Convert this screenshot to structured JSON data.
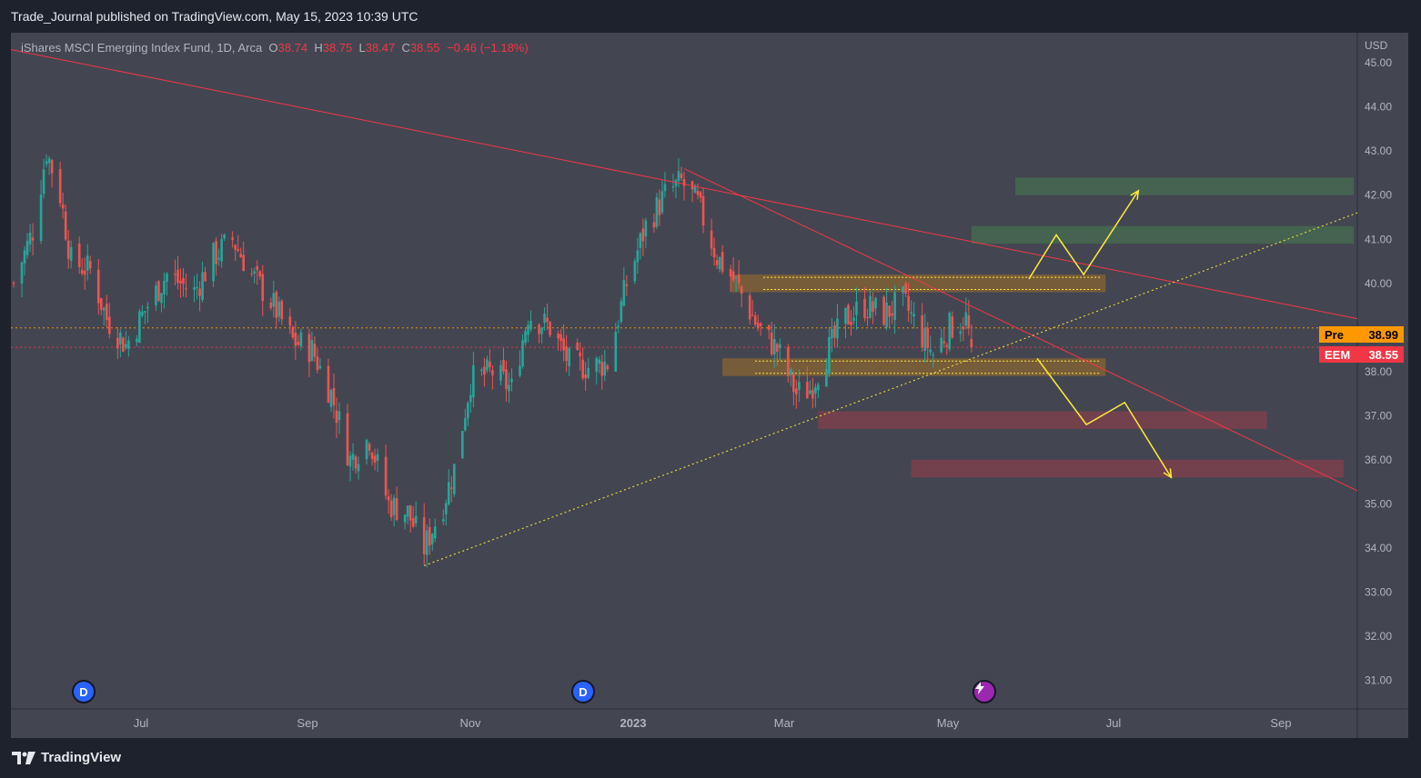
{
  "header": {
    "published_line": "Trade_Journal published on TradingView.com, May 15, 2023 10:39 UTC"
  },
  "symbol_legend": {
    "name": "iShares MSCI Emerging Index Fund, 1D, Arca",
    "open_label": "O",
    "open": "38.74",
    "high_label": "H",
    "high": "38.75",
    "low_label": "L",
    "low": "38.47",
    "close_label": "C",
    "close": "38.55",
    "change": "−0.46 (−1.18%)"
  },
  "price_axis": {
    "currency": "USD",
    "ticks": [
      "45.00",
      "44.00",
      "43.00",
      "42.00",
      "41.00",
      "40.00",
      "38.00",
      "37.00",
      "36.00",
      "35.00",
      "34.00",
      "33.00",
      "32.00",
      "31.00"
    ]
  },
  "time_axis": {
    "labels": [
      "Jul",
      "Sep",
      "Nov",
      "2023",
      "Mar",
      "May",
      "Jul",
      "Sep"
    ]
  },
  "price_badges": {
    "pre": {
      "label": "Pre",
      "value": "38.99",
      "color": "#ff9800"
    },
    "last": {
      "label": "EEM",
      "value": "38.55",
      "color": "#f23645"
    }
  },
  "events": [
    {
      "type": "dividend",
      "glyph": "D"
    },
    {
      "type": "dividend",
      "glyph": "D"
    },
    {
      "type": "earnings",
      "icon": "lightning-icon"
    }
  ],
  "footer": {
    "brand": "TradingView"
  },
  "colors": {
    "up": "#26a69a",
    "down": "#ef5350",
    "trendline": "#f23645",
    "support": "#ffeb3b"
  },
  "chart_data": {
    "type": "candlestick",
    "symbol": "EEM",
    "interval": "1D",
    "ylim": [
      30.6,
      45.6
    ],
    "x_range": [
      "2022-05-26",
      "2023-09-30"
    ],
    "close_path": [
      [
        "2022-05-27",
        40.0
      ],
      [
        "2022-06-03",
        41.2
      ],
      [
        "2022-06-08",
        43.0
      ],
      [
        "2022-06-13",
        42.0
      ],
      [
        "2022-06-17",
        40.5
      ],
      [
        "2022-06-24",
        40.3
      ],
      [
        "2022-06-30",
        39.2
      ],
      [
        "2022-07-07",
        38.6
      ],
      [
        "2022-07-15",
        39.5
      ],
      [
        "2022-07-22",
        40.2
      ],
      [
        "2022-08-01",
        39.8
      ],
      [
        "2022-08-08",
        40.6
      ],
      [
        "2022-08-15",
        41.0
      ],
      [
        "2022-08-22",
        40.2
      ],
      [
        "2022-08-29",
        39.6
      ],
      [
        "2022-09-06",
        38.7
      ],
      [
        "2022-09-13",
        38.5
      ],
      [
        "2022-09-20",
        37.5
      ],
      [
        "2022-09-27",
        36.0
      ],
      [
        "2022-10-04",
        36.5
      ],
      [
        "2022-10-11",
        35.0
      ],
      [
        "2022-10-18",
        34.8
      ],
      [
        "2022-10-24",
        34.0
      ],
      [
        "2022-10-31",
        35.0
      ],
      [
        "2022-11-04",
        35.8
      ],
      [
        "2022-11-10",
        37.8
      ],
      [
        "2022-11-18",
        38.0
      ],
      [
        "2022-11-25",
        37.6
      ],
      [
        "2022-12-01",
        39.3
      ],
      [
        "2022-12-09",
        39.0
      ],
      [
        "2022-12-16",
        38.2
      ],
      [
        "2022-12-23",
        38.1
      ],
      [
        "2022-12-30",
        38.2
      ],
      [
        "2023-01-06",
        40.0
      ],
      [
        "2023-01-13",
        41.3
      ],
      [
        "2023-01-20",
        42.0
      ],
      [
        "2023-01-26",
        42.3
      ],
      [
        "2023-02-01",
        41.8
      ],
      [
        "2023-02-08",
        40.6
      ],
      [
        "2023-02-15",
        40.0
      ],
      [
        "2023-02-23",
        39.0
      ],
      [
        "2023-03-02",
        38.5
      ],
      [
        "2023-03-09",
        37.5
      ],
      [
        "2023-03-14",
        37.6
      ],
      [
        "2023-03-20",
        38.4
      ],
      [
        "2023-03-27",
        39.2
      ],
      [
        "2023-04-03",
        39.5
      ],
      [
        "2023-04-10",
        39.3
      ],
      [
        "2023-04-17",
        39.6
      ],
      [
        "2023-04-24",
        38.8
      ],
      [
        "2023-04-28",
        38.4
      ],
      [
        "2023-05-04",
        39.0
      ],
      [
        "2023-05-10",
        39.2
      ],
      [
        "2023-05-12",
        38.55
      ]
    ],
    "trendlines": [
      {
        "name": "long-term-resistance",
        "style": "solid",
        "color": "#f23645",
        "from": [
          "2022-05-26",
          45.3
        ],
        "to": [
          "2023-09-30",
          39.2
        ]
      },
      {
        "name": "short-term-resistance",
        "style": "solid",
        "color": "#f23645",
        "from": [
          "2023-01-27",
          42.6
        ],
        "to": [
          "2023-09-30",
          35.3
        ]
      },
      {
        "name": "rising-support",
        "style": "dotted",
        "color": "#ffeb3b",
        "from": [
          "2022-10-24",
          33.6
        ],
        "to": [
          "2023-09-30",
          41.6
        ]
      }
    ],
    "zones": [
      {
        "kind": "resistance",
        "color": "green",
        "range": [
          42.0,
          42.4
        ],
        "from": "2023-05-28",
        "to": "2023-09-30"
      },
      {
        "kind": "resistance",
        "color": "green",
        "range": [
          40.9,
          41.3
        ],
        "from": "2023-05-12",
        "to": "2023-09-30"
      },
      {
        "kind": "pivot",
        "color": "orange",
        "range": [
          39.8,
          40.2
        ],
        "from": "2023-02-13",
        "to": "2023-06-30"
      },
      {
        "kind": "pivot",
        "color": "orange",
        "range": [
          37.9,
          38.3
        ],
        "from": "2023-02-10",
        "to": "2023-06-30"
      },
      {
        "kind": "support",
        "color": "red",
        "range": [
          36.7,
          37.1
        ],
        "from": "2023-03-17",
        "to": "2023-08-28"
      },
      {
        "kind": "support",
        "color": "red",
        "range": [
          35.6,
          36.0
        ],
        "from": "2023-04-20",
        "to": "2023-09-25"
      }
    ],
    "projections": [
      {
        "scenario": "bullish",
        "color": "#ffeb3b",
        "points": [
          [
            "2023-06-02",
            40.1
          ],
          [
            "2023-06-12",
            41.1
          ],
          [
            "2023-06-22",
            40.2
          ],
          [
            "2023-07-12",
            42.1
          ]
        ]
      },
      {
        "scenario": "bearish",
        "color": "#ffeb3b",
        "points": [
          [
            "2023-06-05",
            38.3
          ],
          [
            "2023-06-23",
            36.8
          ],
          [
            "2023-07-07",
            37.3
          ],
          [
            "2023-07-24",
            35.6
          ]
        ]
      }
    ],
    "reference_lines": [
      {
        "name": "Pre",
        "value": 38.99,
        "color": "#ff9800"
      },
      {
        "name": "EEM",
        "value": 38.55,
        "color": "#f23645"
      }
    ],
    "grid": false,
    "legend": "top-left"
  }
}
